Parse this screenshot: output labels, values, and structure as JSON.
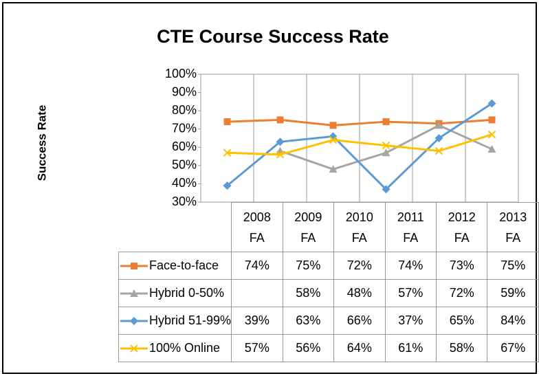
{
  "chart_data": {
    "type": "line",
    "title": "CTE Course Success Rate",
    "y_label": "Success Rate",
    "categories": [
      "2008 FA",
      "2009 FA",
      "2010 FA",
      "2011 FA",
      "2012 FA",
      "2013 FA"
    ],
    "series": [
      {
        "name": "Face-to-face",
        "color": "#ED7D31",
        "marker": "square",
        "values": [
          74,
          75,
          72,
          74,
          73,
          75
        ],
        "value_labels": [
          "74%",
          "75%",
          "72%",
          "74%",
          "73%",
          "75%"
        ]
      },
      {
        "name": "Hybrid 0-50%",
        "color": "#A5A5A5",
        "marker": "triangle",
        "values": [
          null,
          58,
          48,
          57,
          72,
          59
        ],
        "value_labels": [
          null,
          "58%",
          "48%",
          "57%",
          "72%",
          "59%"
        ]
      },
      {
        "name": "Hybrid 51-99%",
        "color": "#5B9BD5",
        "marker": "diamond",
        "values": [
          39,
          63,
          66,
          37,
          65,
          84
        ],
        "value_labels": [
          "39%",
          "63%",
          "66%",
          "37%",
          "65%",
          "84%"
        ]
      },
      {
        "name": "100% Online",
        "color": "#FFC000",
        "marker": "x",
        "values": [
          57,
          56,
          64,
          61,
          58,
          67
        ],
        "value_labels": [
          "57%",
          "56%",
          "64%",
          "61%",
          "58%",
          "67%"
        ]
      }
    ],
    "ylim": [
      30,
      100
    ],
    "yticks": [
      {
        "value": 30,
        "label": "30%"
      },
      {
        "value": 40,
        "label": "40%"
      },
      {
        "value": 50,
        "label": "50%"
      },
      {
        "value": 60,
        "label": "60%"
      },
      {
        "value": 70,
        "label": "70%"
      },
      {
        "value": 80,
        "label": "80%"
      },
      {
        "value": 90,
        "label": "90%"
      },
      {
        "value": 100,
        "label": "100%"
      }
    ],
    "grid": false
  }
}
